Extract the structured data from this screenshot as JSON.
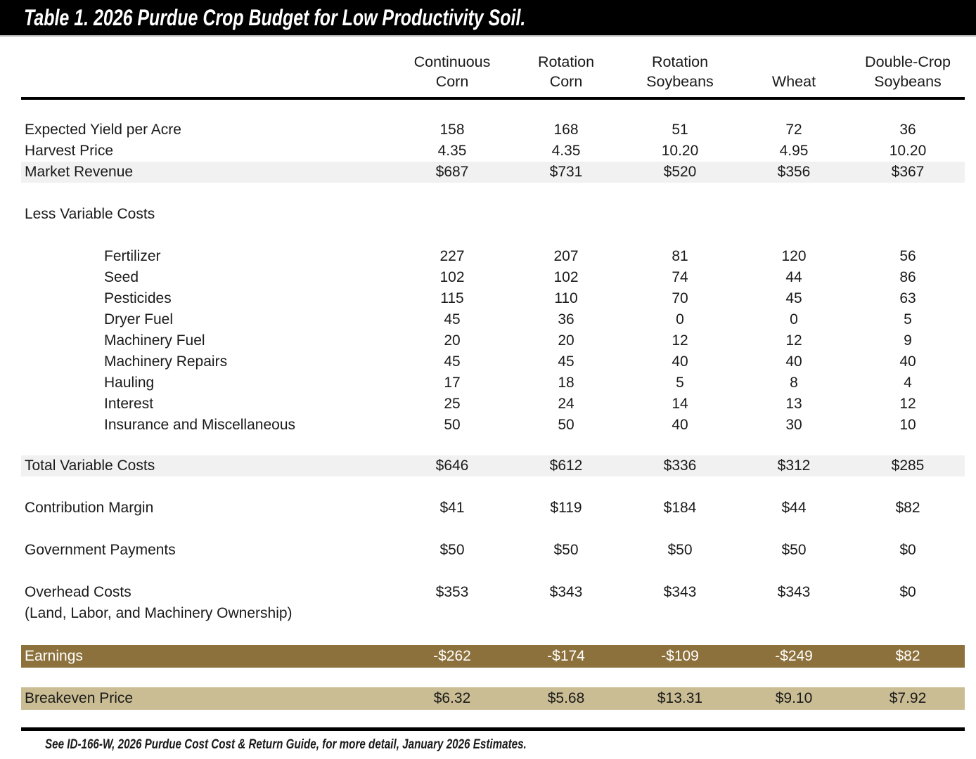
{
  "title": "Table 1. 2026 Purdue Crop Budget for Low Productivity Soil.",
  "footnote": "See ID-166-W, 2026 Purdue Cost Cost & Return Guide, for more detail, January 2026 Estimates.",
  "columns": [
    {
      "line1": "Continuous",
      "line2": "Corn"
    },
    {
      "line1": "Rotation",
      "line2": "Corn"
    },
    {
      "line1": "Rotation",
      "line2": "Soybeans"
    },
    {
      "line1": "",
      "line2": "Wheat"
    },
    {
      "line1": "Double-Crop",
      "line2": "Soybeans"
    }
  ],
  "sections": {
    "less_variable_costs": "Less Variable Costs"
  },
  "rows": {
    "expected_yield": {
      "label": "Expected Yield per Acre",
      "values": [
        "158",
        "168",
        "51",
        "72",
        "36"
      ]
    },
    "harvest_price": {
      "label": "Harvest Price",
      "values": [
        "4.35",
        "4.35",
        "10.20",
        "4.95",
        "10.20"
      ]
    },
    "market_revenue": {
      "label": "Market Revenue",
      "values": [
        "$687",
        "$731",
        "$520",
        "$356",
        "$367"
      ]
    },
    "fertilizer": {
      "label": "Fertilizer",
      "values": [
        "227",
        "207",
        "81",
        "120",
        "56"
      ]
    },
    "seed": {
      "label": "Seed",
      "values": [
        "102",
        "102",
        "74",
        "44",
        "86"
      ]
    },
    "pesticides": {
      "label": "Pesticides",
      "values": [
        "115",
        "110",
        "70",
        "45",
        "63"
      ]
    },
    "dryer_fuel": {
      "label": "Dryer Fuel",
      "values": [
        "45",
        "36",
        "0",
        "0",
        "5"
      ]
    },
    "machinery_fuel": {
      "label": "Machinery Fuel",
      "values": [
        "20",
        "20",
        "12",
        "12",
        "9"
      ]
    },
    "machinery_repairs": {
      "label": "Machinery Repairs",
      "values": [
        "45",
        "45",
        "40",
        "40",
        "40"
      ]
    },
    "hauling": {
      "label": "Hauling",
      "values": [
        "17",
        "18",
        "5",
        "8",
        "4"
      ]
    },
    "interest": {
      "label": "Interest",
      "values": [
        "25",
        "24",
        "14",
        "13",
        "12"
      ]
    },
    "insurance_misc": {
      "label": "Insurance and Miscellaneous",
      "values": [
        "50",
        "50",
        "40",
        "30",
        "10"
      ]
    },
    "total_variable_costs": {
      "label": "Total Variable Costs",
      "values": [
        "$646",
        "$612",
        "$336",
        "$312",
        "$285"
      ]
    },
    "contribution_margin": {
      "label": "Contribution Margin",
      "values": [
        "$41",
        "$119",
        "$184",
        "$44",
        "$82"
      ]
    },
    "government_payments": {
      "label": "Government Payments",
      "values": [
        "$50",
        "$50",
        "$50",
        "$50",
        "$0"
      ]
    },
    "overhead_costs": {
      "label": "Overhead Costs",
      "note": "(Land, Labor, and Machinery Ownership)",
      "values": [
        "$353",
        "$343",
        "$343",
        "$343",
        "$0"
      ]
    },
    "earnings": {
      "label": "Earnings",
      "values": [
        "-$262",
        "-$174",
        "-$109",
        "-$249",
        "$82"
      ]
    },
    "breakeven_price": {
      "label": "Breakeven Price",
      "values": [
        "$6.32",
        "$5.68",
        "$13.31",
        "$9.10",
        "$7.92"
      ]
    }
  },
  "colors": {
    "title_bar_bg": "#000000",
    "title_text": "#ffffff",
    "stripe_row_bg": "#f1f1f1",
    "earnings_row_bg": "#8d713c",
    "earnings_row_text": "#ffffff",
    "breakeven_row_bg": "#cabd93",
    "rule": "#000000"
  }
}
